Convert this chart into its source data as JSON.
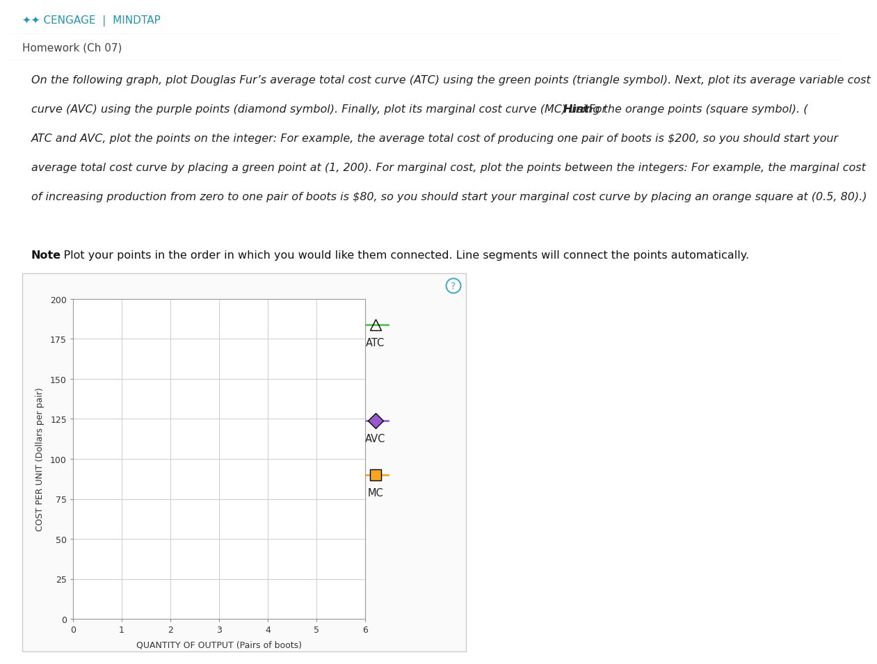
{
  "title_header": "CENGAGE | MINDTAP",
  "subtitle": "Homework (Ch 07)",
  "instructions_line1": "On the following graph, plot Douglas Fur’s average total cost curve (ATC) using the green points (triangle symbol). Next, plot its average variable cost",
  "instructions_line2": "curve (AVC) using the purple points (diamond symbol). Finally, plot its marginal cost curve (MC) using the orange points (square symbol). (",
  "instructions_hint": "Hint",
  "instructions_line2b": ": For",
  "instructions_line3": "ATC and AVC, plot the points on the integer: For example, the average total cost of producing one pair of boots is $200, so you should start your",
  "instructions_line4": "average total cost curve by placing a green point at (1, 200). For marginal cost, plot the points between the integers: For example, the marginal cost",
  "instructions_line5": "of increasing production from zero to one pair of boots is $80, so you should start your marginal cost curve by placing an orange square at (0.5, 80).)",
  "note_bold": "Note",
  "note_rest": ": Plot your points in the order in which you would like them connected. Line segments will connect the points automatically.",
  "xlim": [
    0,
    6
  ],
  "ylim": [
    0,
    200
  ],
  "xticks": [
    0,
    1,
    2,
    3,
    4,
    5,
    6
  ],
  "yticks": [
    0,
    25,
    50,
    75,
    100,
    125,
    150,
    175,
    200
  ],
  "xlabel": "QUANTITY OF OUTPUT (Pairs of boots)",
  "ylabel": "COST PER UNIT (Dollars per pair)",
  "legend_labels": [
    "ATC",
    "AVC",
    "MC"
  ],
  "atc_color": "#56c256",
  "avc_color": "#9b59d0",
  "mc_color": "#f5a623",
  "bg_color": "#ffffff",
  "plot_bg_color": "#ffffff",
  "grid_color": "#cccccc",
  "header_bg": "#ffffff",
  "hw_bg": "#f5f5f5",
  "border_color": "#cccccc",
  "question_mark_color": "#4aa8c8",
  "cengage_color": "#2196b0",
  "axis_label_fontsize": 9,
  "tick_fontsize": 9,
  "marker_size": 11,
  "text_fontsize": 11.5,
  "note_fontsize": 11.5
}
